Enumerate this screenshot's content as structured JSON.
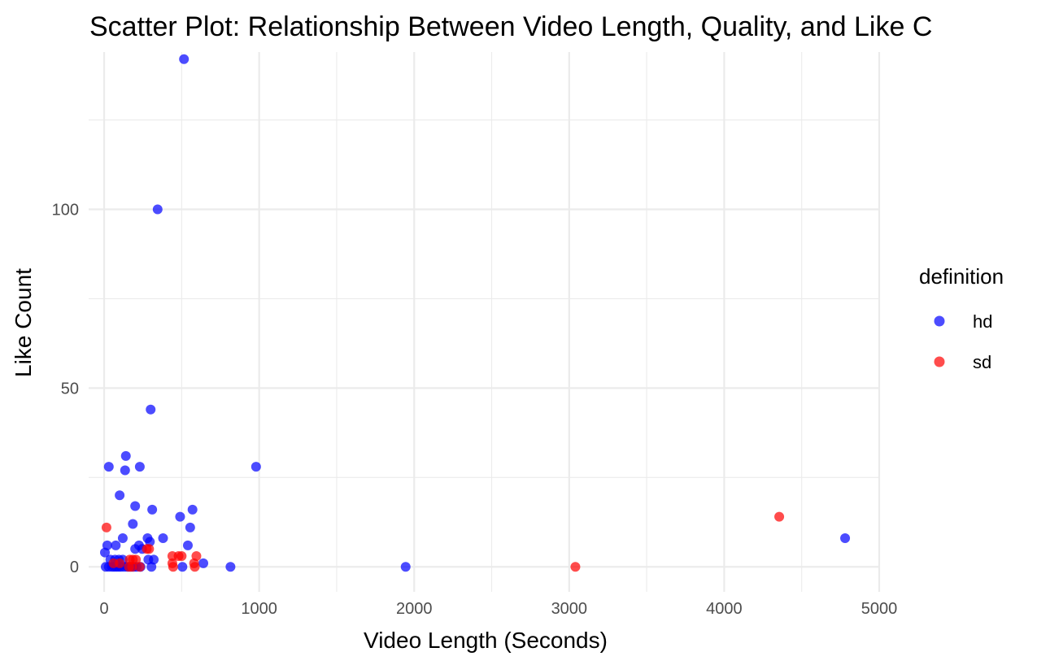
{
  "chart_data": {
    "type": "scatter",
    "title": "Scatter Plot: Relationship Between Video Length, Quality, and Like C",
    "xlabel": "Video Length (Seconds)",
    "ylabel": "Like Count",
    "xlim": [
      -100,
      5000
    ],
    "ylim": [
      -7,
      144
    ],
    "x_ticks": [
      0,
      1000,
      2000,
      3000,
      4000,
      5000
    ],
    "x_tick_labels": [
      "0",
      "1000",
      "2000",
      "3000",
      "4000",
      "5000"
    ],
    "y_ticks": [
      0,
      50,
      100
    ],
    "y_tick_labels": [
      "0",
      "50",
      "100"
    ],
    "x_minor_ticks": [
      500,
      1500,
      2500,
      3500,
      4500
    ],
    "y_minor_ticks": [
      25,
      75,
      125
    ],
    "grid": true,
    "legend": {
      "title": "definition",
      "position": "right"
    },
    "series": [
      {
        "name": "hd",
        "color": "#0000ff",
        "points": [
          [
            515,
            142
          ],
          [
            345,
            100
          ],
          [
            300,
            44
          ],
          [
            980,
            28
          ],
          [
            30,
            28
          ],
          [
            140,
            31
          ],
          [
            135,
            27
          ],
          [
            230,
            28
          ],
          [
            100,
            20
          ],
          [
            200,
            17
          ],
          [
            185,
            12
          ],
          [
            310,
            16
          ],
          [
            570,
            16
          ],
          [
            490,
            14
          ],
          [
            555,
            11
          ],
          [
            20,
            6
          ],
          [
            75,
            6
          ],
          [
            120,
            8
          ],
          [
            280,
            8
          ],
          [
            295,
            7
          ],
          [
            380,
            8
          ],
          [
            540,
            6
          ],
          [
            200,
            5
          ],
          [
            225,
            6
          ],
          [
            245,
            5
          ],
          [
            5,
            4
          ],
          [
            40,
            2
          ],
          [
            70,
            2
          ],
          [
            95,
            2
          ],
          [
            120,
            2
          ],
          [
            285,
            2
          ],
          [
            320,
            2
          ],
          [
            10,
            0
          ],
          [
            30,
            0
          ],
          [
            50,
            0
          ],
          [
            65,
            0
          ],
          [
            80,
            0
          ],
          [
            95,
            0
          ],
          [
            110,
            0
          ],
          [
            130,
            0
          ],
          [
            150,
            0
          ],
          [
            170,
            0
          ],
          [
            190,
            0
          ],
          [
            210,
            0
          ],
          [
            235,
            0
          ],
          [
            305,
            0
          ],
          [
            505,
            0
          ],
          [
            640,
            1
          ],
          [
            815,
            0
          ],
          [
            1945,
            0
          ],
          [
            4780,
            8
          ]
        ]
      },
      {
        "name": "sd",
        "color": "#ff0000",
        "points": [
          [
            15,
            11
          ],
          [
            290,
            5
          ],
          [
            275,
            5
          ],
          [
            440,
            3
          ],
          [
            480,
            3
          ],
          [
            500,
            3
          ],
          [
            595,
            3
          ],
          [
            440,
            1
          ],
          [
            445,
            0
          ],
          [
            580,
            1
          ],
          [
            585,
            0
          ],
          [
            165,
            2
          ],
          [
            185,
            2
          ],
          [
            205,
            2
          ],
          [
            60,
            1
          ],
          [
            100,
            1
          ],
          [
            160,
            0
          ],
          [
            180,
            0
          ],
          [
            230,
            0
          ],
          [
            3040,
            0
          ],
          [
            4355,
            14
          ]
        ]
      }
    ]
  }
}
